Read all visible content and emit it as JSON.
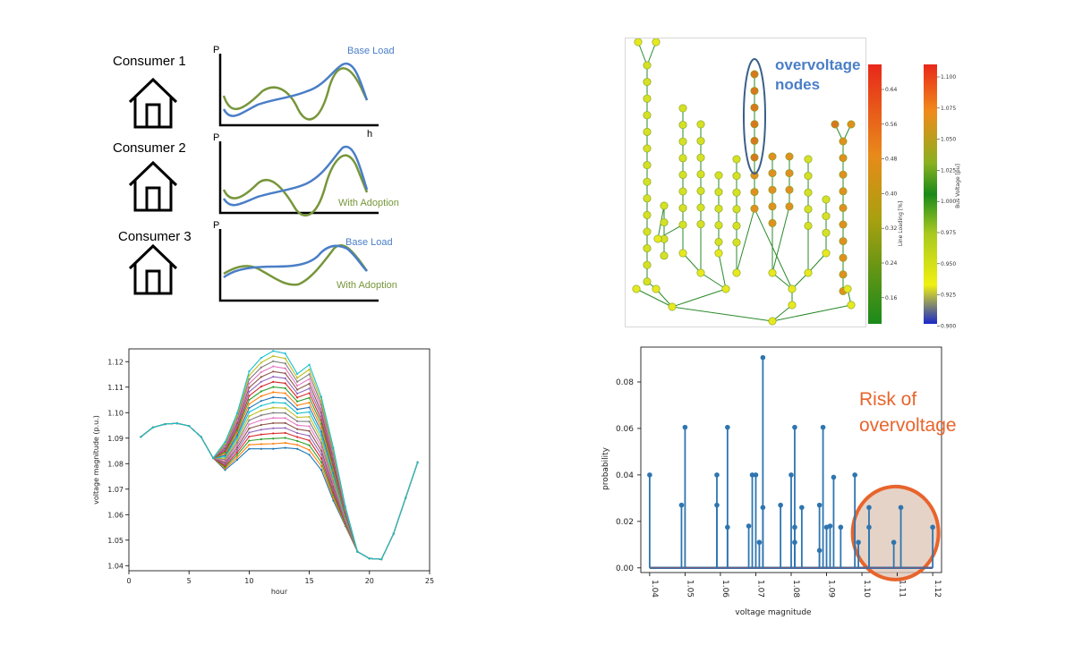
{
  "consumers": {
    "labels": [
      "Consumer 1",
      "Consumer 2",
      "Consumer 3"
    ],
    "axis_p": "P",
    "axis_h": "h",
    "base_load_label": "Base Load",
    "with_adoption_label": "With Adoption",
    "colors": {
      "base": "#4a7ec7",
      "adoption": "#77963a"
    }
  },
  "network": {
    "annotation": "overvoltage\nnodes",
    "line_loading_label": "Line Loading [%]",
    "bus_voltage_label": "Bus Voltage [pu]",
    "line_loading_ticks": [
      "0.64",
      "0.56",
      "0.48",
      "0.40",
      "0.32",
      "0.24",
      "0.16"
    ],
    "bus_voltage_ticks": [
      "1.100",
      "1.075",
      "1.050",
      "1.025",
      "1.000",
      "0.975",
      "0.950",
      "0.925",
      "0.900"
    ]
  },
  "risk_annotation": "Risk of\novervoltage",
  "chart_data": [
    {
      "type": "line",
      "xlabel": "hour",
      "ylabel": "voltage magnitude (p.u.)",
      "xlim": [
        0,
        25
      ],
      "ylim": [
        1.038,
        1.125
      ],
      "xticks": [
        0,
        5,
        10,
        15,
        20,
        25
      ],
      "yticks": [
        1.04,
        1.05,
        1.06,
        1.07,
        1.08,
        1.09,
        1.1,
        1.11,
        1.12
      ],
      "tick_labels_y": [
        "1.04",
        "1.05",
        "1.06",
        "1.07",
        "1.08",
        "1.09",
        "1.10",
        "1.11",
        "1.12"
      ],
      "shared_x": [
        1,
        2,
        3,
        4,
        5,
        6,
        7,
        20,
        21,
        22,
        23,
        24
      ],
      "shared_y": [
        1.0905,
        1.0942,
        1.0955,
        1.0958,
        1.0948,
        1.0905,
        1.0822,
        1.0428,
        1.0425,
        1.0525,
        1.0665,
        1.0805
      ],
      "spread_x": [
        7,
        8,
        9,
        10,
        11,
        12,
        13,
        14,
        15,
        16,
        17,
        18,
        19,
        20
      ],
      "spread_low": [
        1.0822,
        1.0775,
        1.0815,
        1.0858,
        1.0858,
        1.0858,
        1.0862,
        1.0858,
        1.0835,
        1.0775,
        1.0655,
        1.0555,
        1.0455,
        1.0428
      ],
      "spread_high": [
        1.0822,
        1.0885,
        1.0998,
        1.1162,
        1.1215,
        1.1242,
        1.1232,
        1.1152,
        1.1188,
        1.1062,
        1.0862,
        1.0632,
        1.0455,
        1.0428
      ],
      "series_count": 20,
      "colors": [
        "#1f77b4",
        "#ff7f0e",
        "#2ca02c",
        "#d62728",
        "#9467bd",
        "#8c564b",
        "#e377c2",
        "#7f7f7f",
        "#bcbd22",
        "#17becf",
        "#1f77b4",
        "#ff7f0e",
        "#2ca02c",
        "#d62728",
        "#9467bd",
        "#8c564b",
        "#e377c2",
        "#7f7f7f",
        "#bcbd22",
        "#17becf"
      ]
    },
    {
      "type": "stem",
      "xlabel": "voltage magnitude",
      "ylabel": "probability",
      "xlim": [
        1.0375,
        1.1225
      ],
      "ylim": [
        -0.002,
        0.095
      ],
      "xticks": [
        1.04,
        1.05,
        1.06,
        1.07,
        1.08,
        1.09,
        1.1,
        1.11,
        1.12
      ],
      "tick_labels_x": [
        "1.04",
        "1.05",
        "1.06",
        "1.07",
        "1.08",
        "1.09",
        "1.10",
        "1.11",
        "1.12"
      ],
      "yticks": [
        0,
        0.02,
        0.04,
        0.06,
        0.08
      ],
      "tick_labels_y": [
        "0.00",
        "0.02",
        "0.04",
        "0.06",
        "0.08"
      ],
      "x": [
        1.04,
        1.049,
        1.05,
        1.059,
        1.059,
        1.062,
        1.062,
        1.068,
        1.069,
        1.07,
        1.071,
        1.072,
        1.072,
        1.077,
        1.08,
        1.081,
        1.081,
        1.081,
        1.083,
        1.088,
        1.088,
        1.089,
        1.09,
        1.091,
        1.092,
        1.094,
        1.098,
        1.099,
        1.102,
        1.102,
        1.109,
        1.111,
        1.12
      ],
      "y": [
        0.04,
        0.027,
        0.0605,
        0.04,
        0.027,
        0.0605,
        0.0175,
        0.018,
        0.04,
        0.04,
        0.011,
        0.0905,
        0.026,
        0.027,
        0.04,
        0.0605,
        0.0175,
        0.011,
        0.026,
        0.027,
        0.0075,
        0.0605,
        0.0175,
        0.018,
        0.039,
        0.0175,
        0.04,
        0.011,
        0.026,
        0.0175,
        0.011,
        0.026,
        0.0175
      ],
      "color": "#2e75b0",
      "highlight_color": "#e8642c"
    }
  ]
}
